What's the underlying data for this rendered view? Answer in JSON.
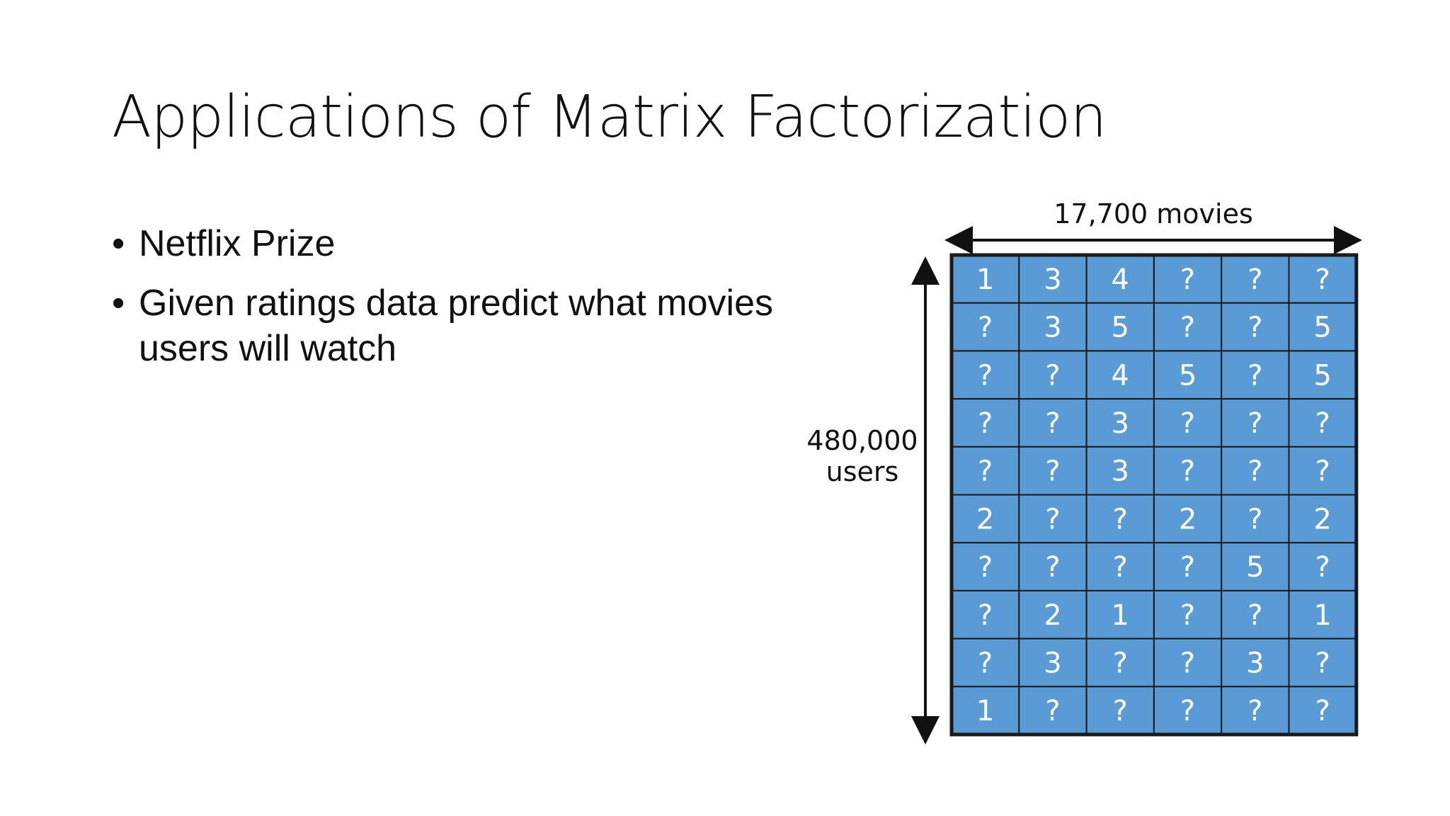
{
  "slide": {
    "title": "Applications of Matrix Factorization",
    "bullets": [
      "Netflix Prize",
      "Given ratings data predict what movies users will watch"
    ]
  },
  "matrix": {
    "columns_label": "17,700 movies",
    "rows_label_line1": "480,000",
    "rows_label_line2": "users",
    "cell_color": "#5b9bd5",
    "grid_color": "#1a1a1a",
    "rows": [
      [
        "1",
        "3",
        "4",
        "?",
        "?",
        "?"
      ],
      [
        "?",
        "3",
        "5",
        "?",
        "?",
        "5"
      ],
      [
        "?",
        "?",
        "4",
        "5",
        "?",
        "5"
      ],
      [
        "?",
        "?",
        "3",
        "?",
        "?",
        "?"
      ],
      [
        "?",
        "?",
        "3",
        "?",
        "?",
        "?"
      ],
      [
        "2",
        "?",
        "?",
        "2",
        "?",
        "2"
      ],
      [
        "?",
        "?",
        "?",
        "?",
        "5",
        "?"
      ],
      [
        "?",
        "2",
        "1",
        "?",
        "?",
        "1"
      ],
      [
        "?",
        "3",
        "?",
        "?",
        "3",
        "?"
      ],
      [
        "1",
        "?",
        "?",
        "?",
        "?",
        "?"
      ]
    ]
  }
}
